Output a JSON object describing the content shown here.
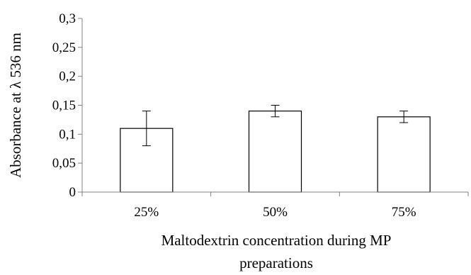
{
  "chart_data": {
    "type": "bar",
    "categories": [
      "25%",
      "50%",
      "75%"
    ],
    "values": [
      0.11,
      0.14,
      0.13
    ],
    "error": [
      0.03,
      0.01,
      0.01
    ],
    "ylabel": "Absorbance at λ 536 nm",
    "xlabel_lines": [
      "Maltodextrin concentration during MP",
      "preparations"
    ],
    "ylim": [
      0,
      0.3
    ],
    "yticks": [
      0,
      0.05,
      0.1,
      0.15,
      0.2,
      0.25,
      0.3
    ],
    "ytick_labels": [
      "0",
      "0,05",
      "0,1",
      "0,15",
      "0,2",
      "0,25",
      "0,3"
    ],
    "grid": false,
    "bar_fill": "#ffffff",
    "bar_stroke": "#000000"
  }
}
